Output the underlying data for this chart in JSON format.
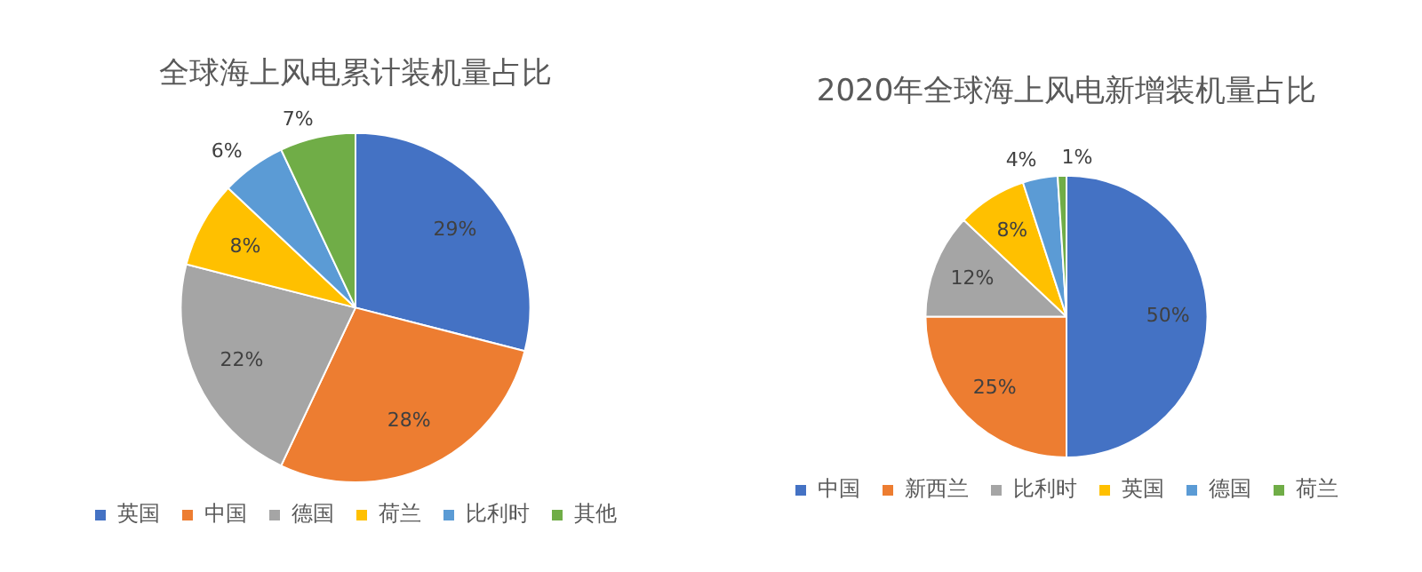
{
  "chart_data": [
    {
      "type": "pie",
      "title": "全球海上风电累计装机量占比",
      "categories": [
        "英国",
        "中国",
        "德国",
        "荷兰",
        "比利时",
        "其他"
      ],
      "values": [
        29,
        28,
        22,
        8,
        6,
        7
      ],
      "value_labels": [
        "29%",
        "28%",
        "22%",
        "8%",
        "6%",
        "7%"
      ],
      "colors": [
        "#4472c4",
        "#ed7d31",
        "#a5a5a5",
        "#ffc000",
        "#5b9bd5",
        "#70ad47"
      ],
      "legend": "bottom"
    },
    {
      "type": "pie",
      "title": "2020年全球海上风电新增装机量占比",
      "categories": [
        "中国",
        "新西兰",
        "比利时",
        "英国",
        "德国",
        "荷兰"
      ],
      "values": [
        50,
        25,
        12,
        8,
        4,
        1
      ],
      "value_labels": [
        "50%",
        "25%",
        "12%",
        "8%",
        "4%",
        "1%"
      ],
      "colors": [
        "#4472c4",
        "#ed7d31",
        "#a5a5a5",
        "#ffc000",
        "#5b9bd5",
        "#70ad47"
      ],
      "legend": "bottom"
    }
  ]
}
